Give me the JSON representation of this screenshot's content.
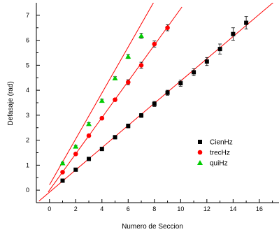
{
  "chart_data": {
    "type": "scatter",
    "title": "",
    "xlabel": "Numero de Seccion",
    "ylabel": "Defasaje (rad)",
    "xlim": [
      -1,
      17.5
    ],
    "ylim": [
      -0.5,
      7.5
    ],
    "x_ticks": [
      0,
      2,
      4,
      6,
      8,
      10,
      12,
      14,
      16
    ],
    "y_ticks": [
      0,
      1,
      2,
      3,
      4,
      5,
      6,
      7
    ],
    "grid": false,
    "legend_position": "right",
    "series": [
      {
        "name": "CienHz",
        "marker": "square",
        "color": "#000000",
        "x": [
          1,
          2,
          3,
          4,
          5,
          6,
          7,
          8,
          9,
          10,
          11,
          12,
          13,
          14,
          15
        ],
        "y": [
          0.38,
          0.82,
          1.25,
          1.65,
          2.12,
          2.57,
          2.99,
          3.45,
          3.9,
          4.28,
          4.72,
          5.15,
          5.65,
          6.25,
          6.7
        ],
        "err": [
          0.05,
          0.06,
          0.06,
          0.07,
          0.07,
          0.08,
          0.08,
          0.1,
          0.1,
          0.12,
          0.14,
          0.16,
          0.2,
          0.25,
          0.25
        ],
        "fit": {
          "slope": 0.445,
          "intercept": -0.08,
          "x_range": [
            -0.8,
            17.5
          ]
        }
      },
      {
        "name": "trecHz",
        "marker": "circle",
        "color": "#ff0000",
        "x": [
          1,
          2,
          3,
          4,
          5,
          6,
          7,
          8,
          9
        ],
        "y": [
          0.72,
          1.45,
          2.18,
          2.88,
          3.62,
          4.32,
          5.0,
          5.85,
          6.5
        ],
        "err": [
          0.04,
          0.05,
          0.05,
          0.06,
          0.06,
          0.1,
          0.12,
          0.12,
          0.12
        ],
        "fit": {
          "slope": 0.726,
          "intercept": 0.0,
          "x_range": [
            -0.1,
            10.1
          ]
        }
      },
      {
        "name": "quiHz",
        "marker": "triangle",
        "color": "#00cc00",
        "x": [
          1,
          2,
          3,
          4,
          5,
          6,
          7
        ],
        "y": [
          1.08,
          1.75,
          2.65,
          3.58,
          4.48,
          5.35,
          6.18
        ],
        "err": [
          0.04,
          0.04,
          0.05,
          0.06,
          0.06,
          0.08,
          0.1
        ],
        "fit": {
          "slope": 0.92,
          "intercept": 0.21,
          "x_range": [
            0.0,
            8.15
          ]
        }
      }
    ]
  }
}
